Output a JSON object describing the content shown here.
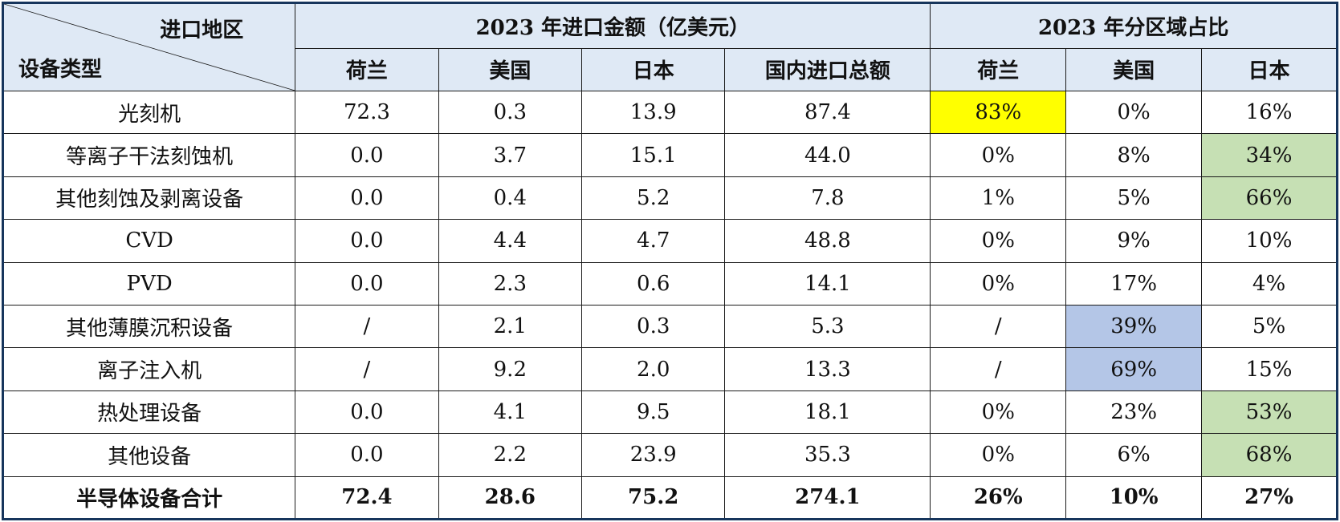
{
  "header": {
    "corner_top": "进口地区",
    "corner_bottom": "设备类型",
    "group_amount": "2023 年进口金额（亿美元）",
    "group_share": "2023 年分区域占比",
    "col_amount": [
      "荷兰",
      "美国",
      "日本",
      "国内进口总额"
    ],
    "col_share": [
      "荷兰",
      "美国",
      "日本"
    ]
  },
  "highlight_colors": {
    "yellow": "#ffff00",
    "green": "#c6e0b4",
    "blue": "#b4c6e7"
  },
  "rows": [
    {
      "name": "光刻机",
      "nl": "72.3",
      "us": "0.3",
      "jp": "13.9",
      "total": "87.4",
      "s_nl": "83%",
      "s_us": "0%",
      "s_jp": "16%"
    },
    {
      "name": "等离子干法刻蚀机",
      "nl": "0.0",
      "us": "3.7",
      "jp": "15.1",
      "total": "44.0",
      "s_nl": "0%",
      "s_us": "8%",
      "s_jp": "34%"
    },
    {
      "name": "其他刻蚀及剥离设备",
      "nl": "0.0",
      "us": "0.4",
      "jp": "5.2",
      "total": "7.8",
      "s_nl": "1%",
      "s_us": "5%",
      "s_jp": "66%"
    },
    {
      "name": "CVD",
      "nl": "0.0",
      "us": "4.4",
      "jp": "4.7",
      "total": "48.8",
      "s_nl": "0%",
      "s_us": "9%",
      "s_jp": "10%"
    },
    {
      "name": "PVD",
      "nl": "0.0",
      "us": "2.3",
      "jp": "0.6",
      "total": "14.1",
      "s_nl": "0%",
      "s_us": "17%",
      "s_jp": "4%"
    },
    {
      "name": "其他薄膜沉积设备",
      "nl": "/",
      "us": "2.1",
      "jp": "0.3",
      "total": "5.3",
      "s_nl": "/",
      "s_us": "39%",
      "s_jp": "5%"
    },
    {
      "name": "离子注入机",
      "nl": "/",
      "us": "9.2",
      "jp": "2.0",
      "total": "13.3",
      "s_nl": "/",
      "s_us": "69%",
      "s_jp": "15%"
    },
    {
      "name": "热处理设备",
      "nl": "0.0",
      "us": "4.1",
      "jp": "9.5",
      "total": "18.1",
      "s_nl": "0%",
      "s_us": "23%",
      "s_jp": "53%"
    },
    {
      "name": "其他设备",
      "nl": "0.0",
      "us": "2.2",
      "jp": "23.9",
      "total": "35.3",
      "s_nl": "0%",
      "s_us": "6%",
      "s_jp": "68%"
    }
  ],
  "total_row": {
    "name": "半导体设备合计",
    "nl": "72.4",
    "us": "28.6",
    "jp": "75.2",
    "total": "274.1",
    "s_nl": "26%",
    "s_us": "10%",
    "s_jp": "27%"
  }
}
